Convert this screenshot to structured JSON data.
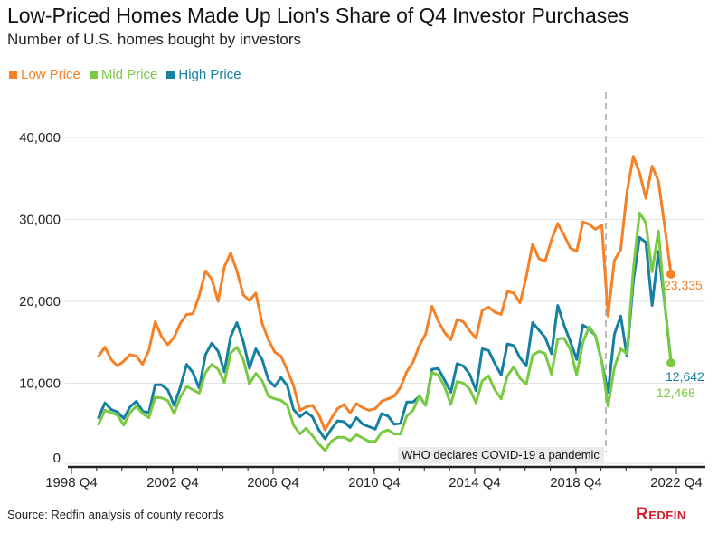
{
  "header": {
    "title": "Low-Priced Homes Made Up Lion's Share of Q4 Investor Purchases",
    "subtitle": "Number of U.S. homes bought by investors"
  },
  "footer": {
    "source": "Source: Redfin analysis of county records",
    "logo": "Redfin"
  },
  "colors": {
    "low": "#f58025",
    "mid": "#7ac943",
    "high": "#1580a0",
    "grid": "#e3e3e3",
    "axis": "#222222",
    "annotation_line": "#bbbbbb",
    "annotation_bg": "#ebebeb"
  },
  "chart_data": {
    "type": "line",
    "title": "Low-Priced Homes Made Up Lion's Share of Q4 Investor Purchases",
    "subtitle": "Number of U.S. homes bought by investors",
    "xlabel": "",
    "ylabel": "",
    "ylim": [
      0,
      40000
    ],
    "yticks": [
      0,
      10000,
      20000,
      30000,
      40000
    ],
    "ytick_labels": [
      "0",
      "10,000",
      "20,000",
      "30,000",
      "40,000"
    ],
    "xtick_labels": [
      "1998 Q4",
      "2002 Q4",
      "2006 Q4",
      "2010 Q4",
      "2014 Q4",
      "2018 Q4",
      "2022 Q4"
    ],
    "x_start": "2000 Q1",
    "x_end": "2022 Q4",
    "grid": true,
    "legend_position": "top-left",
    "annotations": [
      {
        "at": "2020 Q1",
        "text": "WHO declares COVID-19 a pandemic",
        "style": "dashed-vertical-line"
      }
    ],
    "end_labels": [
      {
        "series": "Low Price",
        "text": "23,335"
      },
      {
        "series": "High Price",
        "text": "12,642"
      },
      {
        "series": "Mid Price",
        "text": "12,468"
      }
    ],
    "series": [
      {
        "name": "Low Price",
        "key": "low",
        "values": [
          13300,
          14400,
          12900,
          12100,
          12700,
          13500,
          13300,
          12300,
          14000,
          17500,
          15700,
          14700,
          15600,
          17300,
          18400,
          18500,
          20700,
          23700,
          22700,
          20000,
          24200,
          25900,
          23700,
          20800,
          20100,
          21000,
          17300,
          15300,
          13800,
          13300,
          11600,
          9700,
          6700,
          7100,
          7300,
          6200,
          4300,
          5700,
          6900,
          7400,
          6400,
          7500,
          7000,
          6700,
          6900,
          7800,
          8100,
          8400,
          9500,
          11400,
          12600,
          14600,
          16000,
          19400,
          17600,
          16200,
          15300,
          17800,
          17500,
          16400,
          15500,
          18900,
          19300,
          18700,
          18400,
          21200,
          21000,
          19800,
          23000,
          27000,
          25200,
          24900,
          27500,
          29500,
          28100,
          26500,
          26100,
          29700,
          29400,
          28800,
          29300,
          18200,
          25000,
          26300,
          33300,
          37700,
          35700,
          32600,
          36500,
          34700,
          29200,
          23335
        ]
      },
      {
        "name": "Mid Price",
        "key": "mid",
        "values": [
          5000,
          6700,
          6400,
          6100,
          4900,
          6400,
          7200,
          6300,
          5800,
          8300,
          8200,
          7900,
          6300,
          8300,
          9600,
          9200,
          8800,
          11300,
          12300,
          11700,
          10100,
          13700,
          14400,
          12900,
          9900,
          11200,
          10300,
          8400,
          8100,
          7900,
          7300,
          4900,
          3800,
          4500,
          3600,
          2600,
          1800,
          2900,
          3400,
          3400,
          3000,
          3700,
          3300,
          2900,
          2900,
          4000,
          4300,
          3800,
          3800,
          6000,
          6700,
          8500,
          7300,
          11300,
          11000,
          9600,
          7400,
          10200,
          10000,
          9300,
          7600,
          10300,
          10900,
          9200,
          8100,
          10900,
          12000,
          10600,
          9900,
          13400,
          13900,
          13600,
          11100,
          15400,
          15500,
          14100,
          11000,
          15000,
          16900,
          15800,
          12600,
          7200,
          11900,
          14200,
          13600,
          23800,
          30800,
          29600,
          23600,
          28600,
          19800,
          12468
        ]
      },
      {
        "name": "High Price",
        "key": "high",
        "values": [
          5800,
          7600,
          6800,
          6500,
          5700,
          7100,
          7800,
          6600,
          6400,
          9800,
          9800,
          9200,
          7300,
          9500,
          12300,
          11300,
          9400,
          13500,
          14900,
          13900,
          11400,
          15700,
          17400,
          15100,
          11800,
          14200,
          12900,
          10400,
          9600,
          10700,
          9700,
          6800,
          5900,
          6500,
          5900,
          4300,
          3200,
          4400,
          5400,
          5300,
          4600,
          5800,
          5000,
          4700,
          4400,
          6300,
          6000,
          5000,
          5100,
          7700,
          7700,
          8400,
          7300,
          11700,
          11800,
          10400,
          8900,
          12400,
          12100,
          11100,
          9100,
          14200,
          14000,
          12400,
          11000,
          14800,
          14600,
          13100,
          12100,
          17400,
          16500,
          15600,
          13600,
          19500,
          17100,
          15100,
          12900,
          17100,
          16600,
          15800,
          12600,
          8900,
          16000,
          18200,
          13300,
          22400,
          27800,
          27200,
          19500,
          26100,
          19800,
          12642
        ]
      }
    ]
  }
}
